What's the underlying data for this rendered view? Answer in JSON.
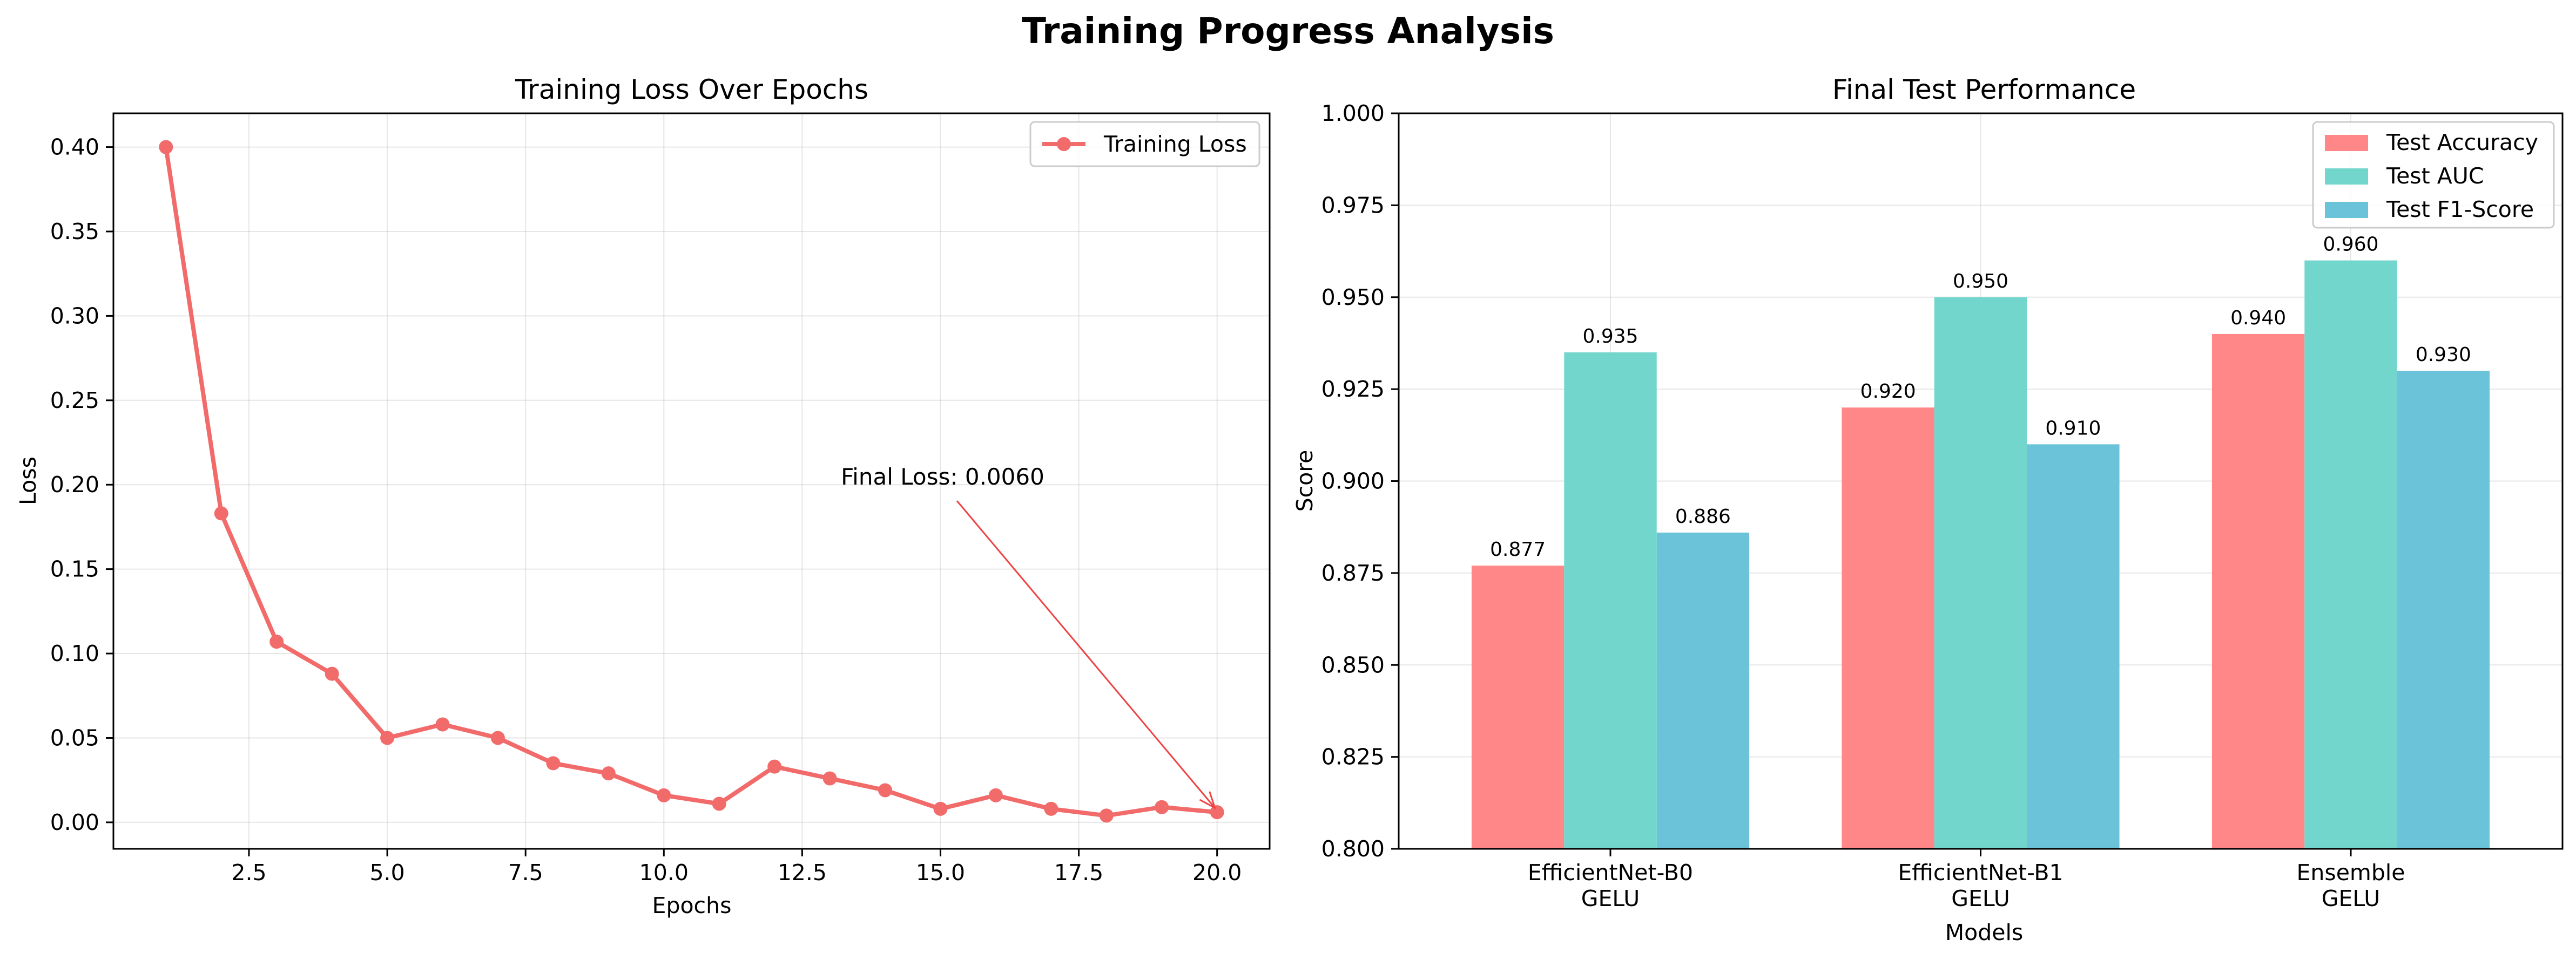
{
  "figure": {
    "title": "Training Progress Analysis"
  },
  "chart_data": [
    {
      "type": "line",
      "title": "Training Loss Over Epochs",
      "xlabel": "Epochs",
      "ylabel": "Loss",
      "xlim": [
        0.05,
        20.95
      ],
      "ylim": [
        -0.0157,
        0.42
      ],
      "xticks": [
        2.5,
        5.0,
        7.5,
        10.0,
        12.5,
        15.0,
        17.5,
        20.0
      ],
      "yticks": [
        0.0,
        0.05,
        0.1,
        0.15,
        0.2,
        0.25,
        0.3,
        0.35,
        0.4
      ],
      "xtick_labels": [
        "2.5",
        "5.0",
        "7.5",
        "10.0",
        "12.5",
        "15.0",
        "17.5",
        "20.0"
      ],
      "ytick_labels": [
        "0.00",
        "0.05",
        "0.10",
        "0.15",
        "0.20",
        "0.25",
        "0.30",
        "0.35",
        "0.40"
      ],
      "grid": true,
      "legend_position": "top-right",
      "series": [
        {
          "name": "Training Loss",
          "color": "#f26b6b",
          "x": [
            1,
            2,
            3,
            4,
            5,
            6,
            7,
            8,
            9,
            10,
            11,
            12,
            13,
            14,
            15,
            16,
            17,
            18,
            19,
            20
          ],
          "y": [
            0.4,
            0.183,
            0.107,
            0.088,
            0.05,
            0.058,
            0.05,
            0.035,
            0.029,
            0.016,
            0.011,
            0.033,
            0.026,
            0.019,
            0.008,
            0.016,
            0.008,
            0.004,
            0.009,
            0.006
          ]
        }
      ],
      "annotation": {
        "text": "Final Loss: 0.0060",
        "text_x": 13.2,
        "text_y": 0.2,
        "point_x": 20,
        "point_y": 0.006,
        "color": "#ee4444"
      }
    },
    {
      "type": "bar",
      "title": "Final Test Performance",
      "xlabel": "Models",
      "ylabel": "Score",
      "ylim": [
        0.8,
        1.0
      ],
      "yticks": [
        0.8,
        0.825,
        0.85,
        0.875,
        0.9,
        0.925,
        0.95,
        0.975,
        1.0
      ],
      "ytick_labels": [
        "0.800",
        "0.825",
        "0.850",
        "0.875",
        "0.900",
        "0.925",
        "0.950",
        "0.975",
        "1.000"
      ],
      "categories": [
        [
          "EfficientNet-B0",
          "GELU"
        ],
        [
          "EfficientNet-B1",
          "GELU"
        ],
        [
          "Ensemble",
          "GELU"
        ]
      ],
      "grid": true,
      "legend_position": "top-right",
      "series": [
        {
          "name": "Test Accuracy",
          "color": "#ff8787",
          "values": [
            0.877,
            0.92,
            0.94
          ],
          "labels": [
            "0.877",
            "0.920",
            "0.940"
          ]
        },
        {
          "name": "Test AUC",
          "color": "#72d6cd",
          "values": [
            0.935,
            0.95,
            0.96
          ],
          "labels": [
            "0.935",
            "0.950",
            "0.960"
          ]
        },
        {
          "name": "Test F1-Score",
          "color": "#6ac3d8",
          "values": [
            0.886,
            0.91,
            0.93
          ],
          "labels": [
            "0.886",
            "0.910",
            "0.930"
          ]
        }
      ]
    }
  ]
}
